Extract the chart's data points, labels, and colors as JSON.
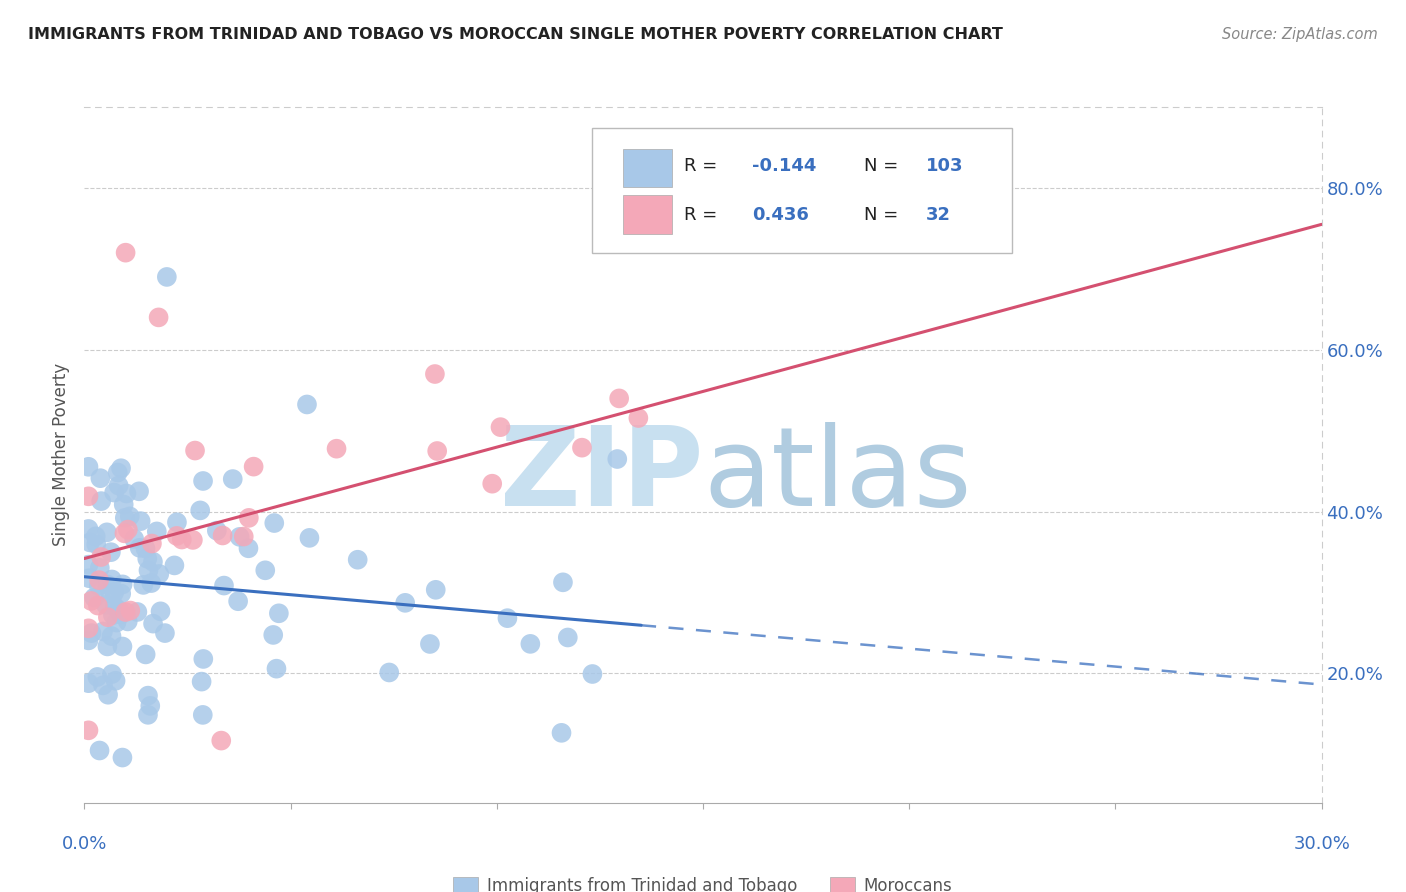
{
  "title": "IMMIGRANTS FROM TRINIDAD AND TOBAGO VS MOROCCAN SINGLE MOTHER POVERTY CORRELATION CHART",
  "source": "Source: ZipAtlas.com",
  "ylabel": "Single Mother Poverty",
  "y_ticks": [
    0.2,
    0.4,
    0.6,
    0.8
  ],
  "y_tick_labels": [
    "20.0%",
    "40.0%",
    "60.0%",
    "80.0%"
  ],
  "xlim": [
    0.0,
    0.3
  ],
  "ylim": [
    0.04,
    0.9
  ],
  "color_blue": "#a8c8e8",
  "color_blue_line": "#3a6fbf",
  "color_pink": "#f4a8b8",
  "color_pink_line": "#d45070",
  "watermark_zip": "#c8e0f0",
  "watermark_atlas": "#b0cce0",
  "grid_color": "#cccccc",
  "border_color": "#cccccc",
  "bottom_axis_color": "#aaaaaa",
  "xlabel_color": "#3a6fbf",
  "ylabel_color": "#555555",
  "title_color": "#222222",
  "source_color": "#888888",
  "legend_text_color": "#222222",
  "legend_num_color": "#3a6fbf"
}
